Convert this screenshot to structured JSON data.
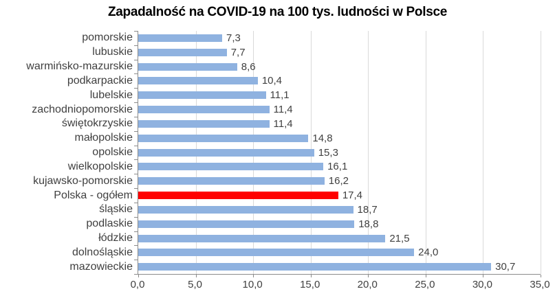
{
  "chart_data": {
    "type": "bar",
    "orientation": "horizontal",
    "title": "Zapadalność na COVID-19 na 100 tys. ludności w Polsce",
    "categories": [
      "pomorskie",
      "lubuskie",
      "warmińsko-mazurskie",
      "podkarpackie",
      "lubelskie",
      "zachodniopomorskie",
      "świętokrzyskie",
      "małopolskie",
      "opolskie",
      "wielkopolskie",
      "kujawsko-pomorskie",
      "Polska - ogółem",
      "śląskie",
      "podlaskie",
      "łódzkie",
      "dolnośląskie",
      "mazowieckie"
    ],
    "values": [
      7.3,
      7.7,
      8.6,
      10.4,
      11.1,
      11.4,
      11.4,
      14.8,
      15.3,
      16.1,
      16.2,
      17.4,
      18.7,
      18.8,
      21.5,
      24.0,
      30.7
    ],
    "value_labels": [
      "7,3",
      "7,7",
      "8,6",
      "10,4",
      "11,1",
      "11,4",
      "11,4",
      "14,8",
      "15,3",
      "16,1",
      "16,2",
      "17,4",
      "18,7",
      "18,8",
      "21,5",
      "24,0",
      "30,7"
    ],
    "highlight_index": 11,
    "highlight_category": "Polska - ogółem",
    "xlabel": "",
    "ylabel": "",
    "x_axis": {
      "min": 0,
      "max": 35,
      "tick_step": 5,
      "tick_labels": [
        "0,0",
        "5,0",
        "10,0",
        "15,0",
        "20,0",
        "25,0",
        "30,0",
        "35,0"
      ]
    },
    "grid": "vertical-gridlines-on",
    "legend": "none",
    "colors": {
      "bar": "#8FB2E0",
      "highlight_bar": "#FF0000",
      "gridline": "#D9D9D9",
      "axis": "#8A8A8A",
      "label_text": "#3F3F3F",
      "title_text": "#000000",
      "background": "#FFFFFF"
    }
  }
}
